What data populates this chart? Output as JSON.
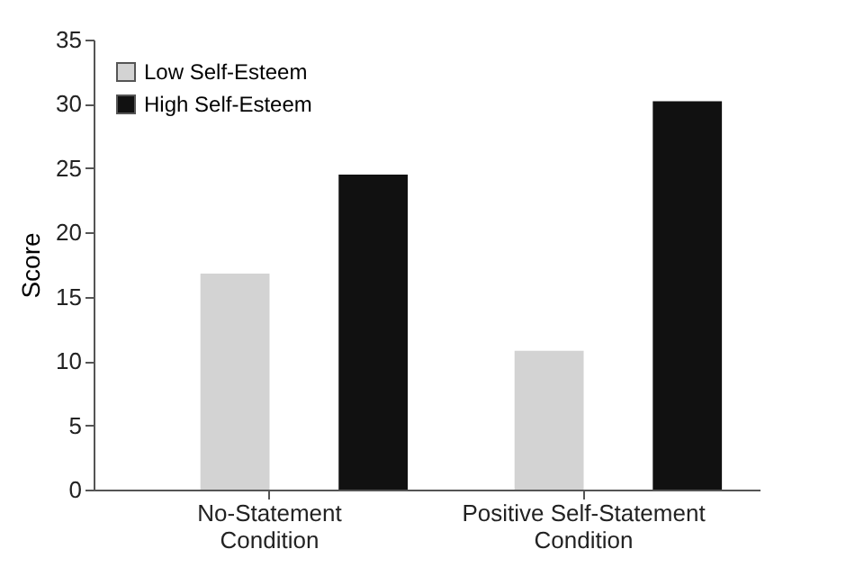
{
  "chart_data": {
    "type": "bar",
    "ylabel": "Score",
    "categories": [
      "No-Statement Condition",
      "Positive Self-Statement Condition"
    ],
    "series": [
      {
        "name": "Low Self-Esteem",
        "color": "#d3d3d3",
        "values": [
          16.8,
          10.8
        ]
      },
      {
        "name": "High Self-Esteem",
        "color": "#111111",
        "values": [
          24.5,
          30.2
        ]
      }
    ],
    "ylim": [
      0,
      35
    ],
    "yticks": [
      0,
      5,
      10,
      15,
      20,
      25,
      30,
      35
    ],
    "grid": false,
    "legend": "top left"
  }
}
